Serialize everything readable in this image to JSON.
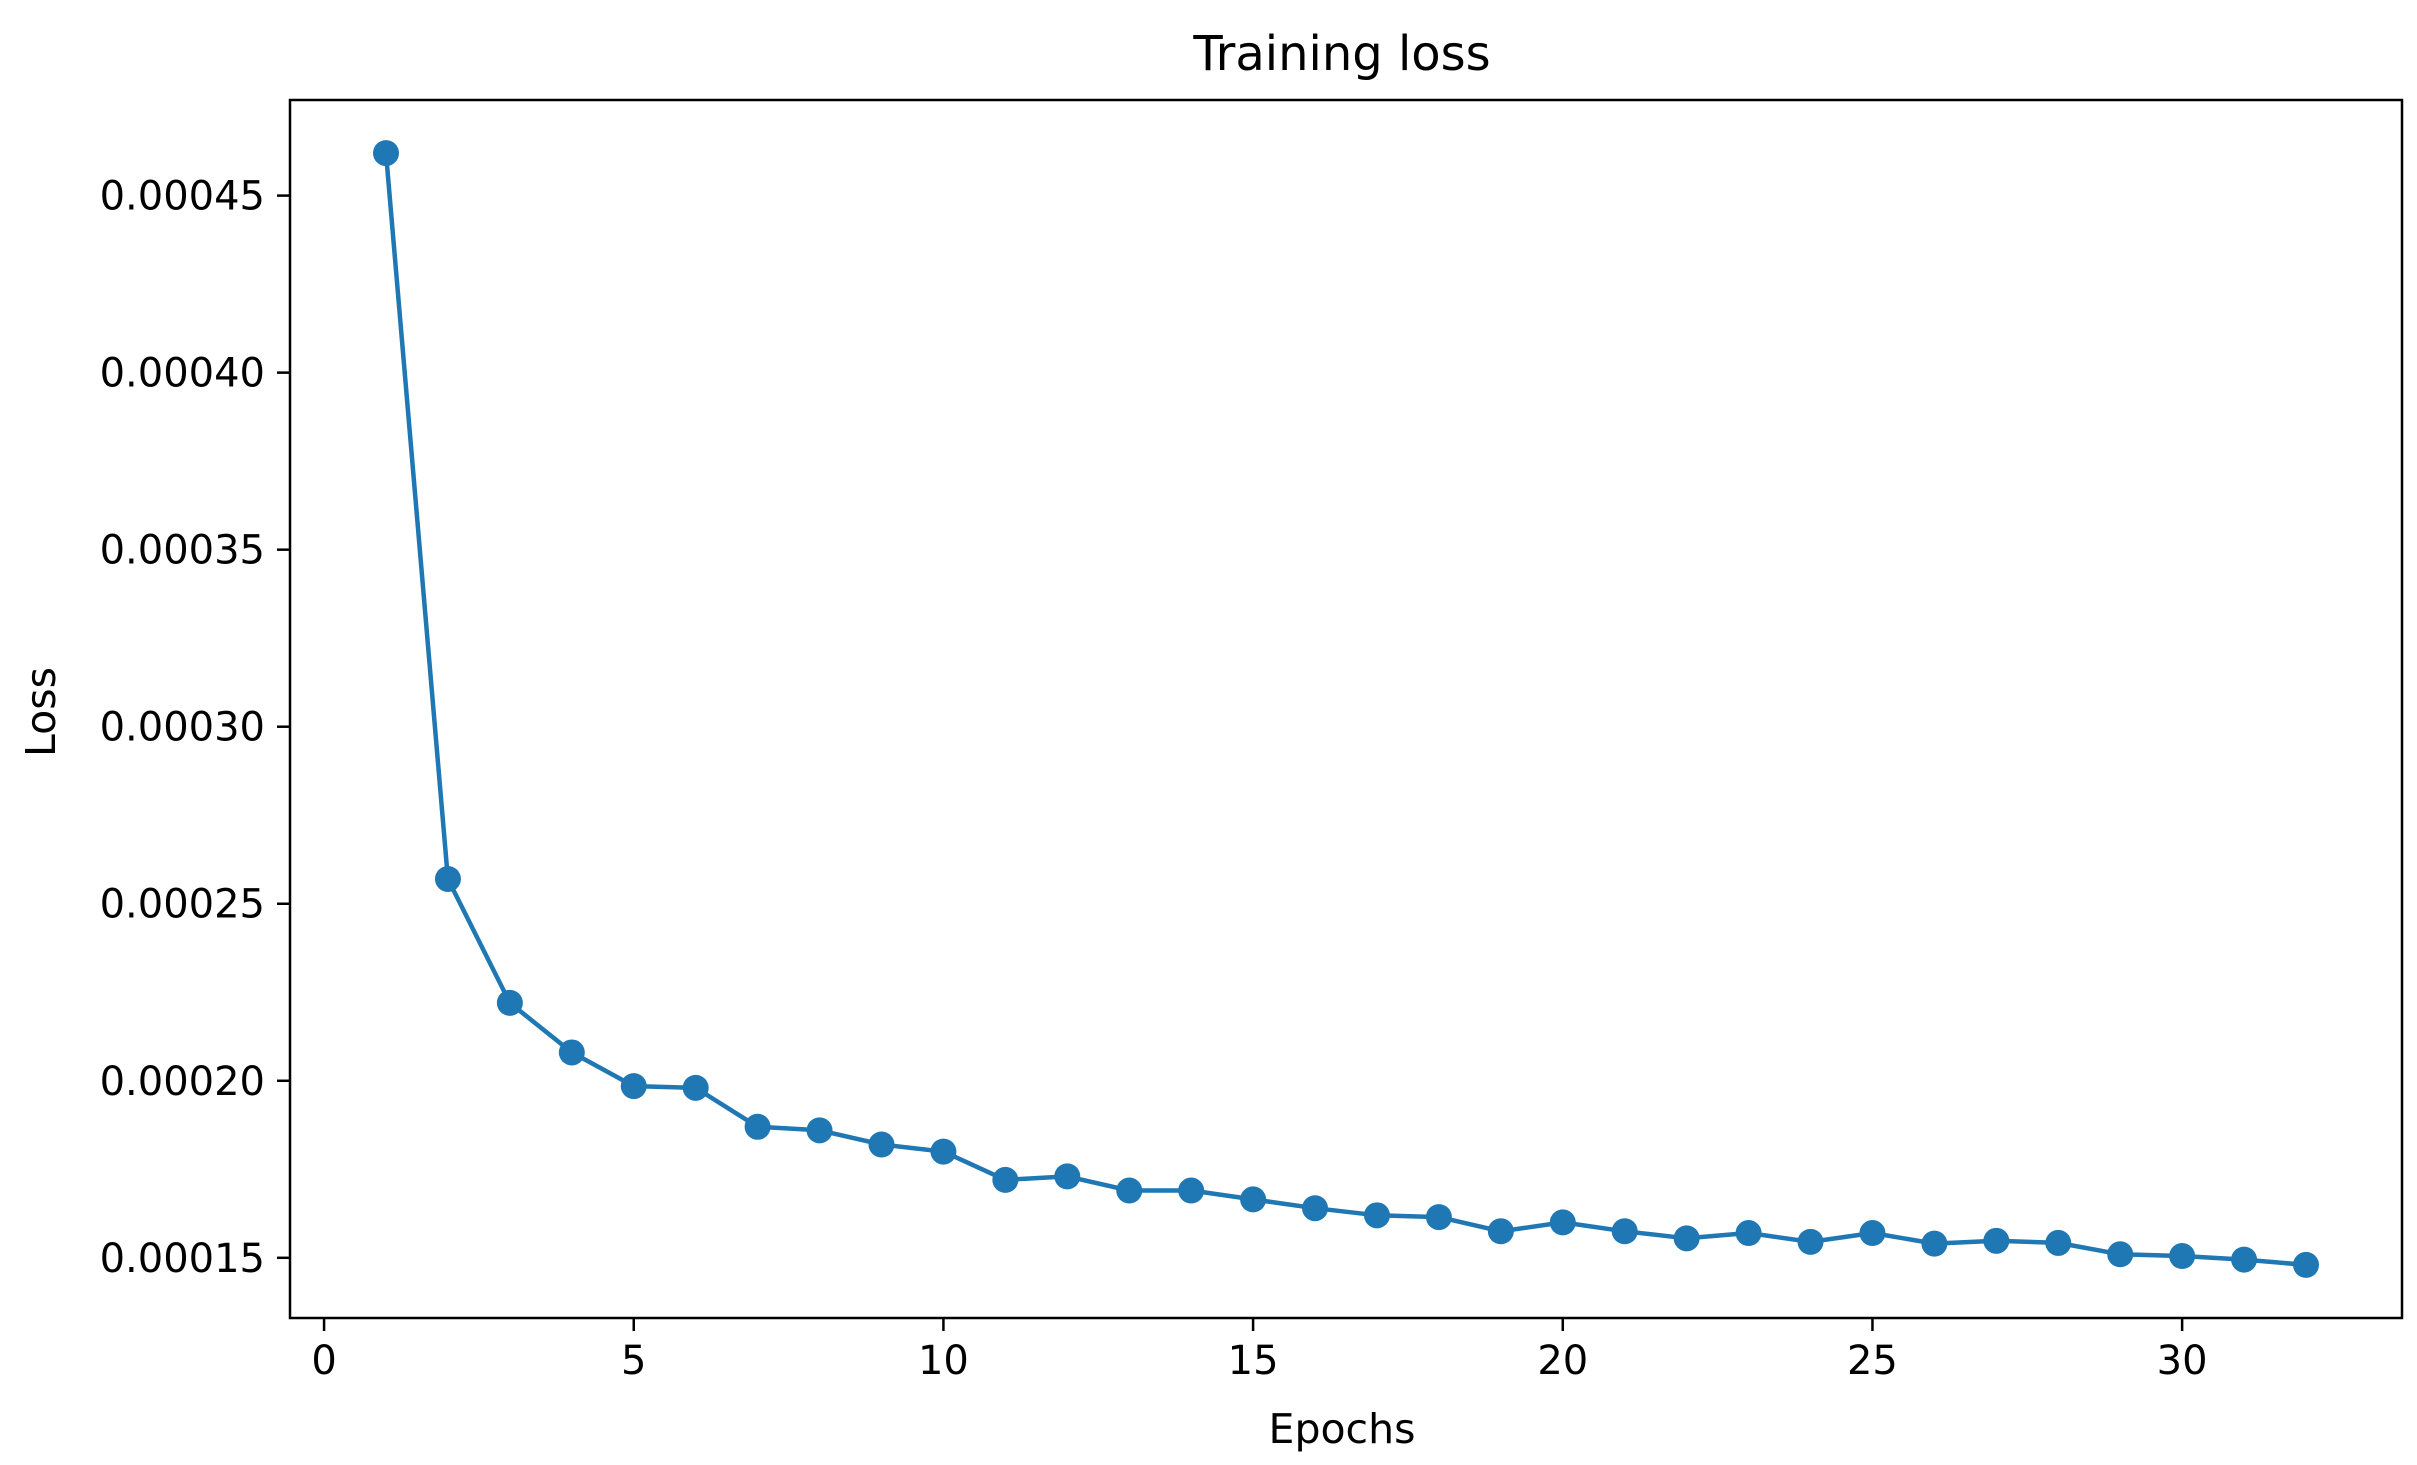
{
  "chart_data": {
    "type": "line",
    "title": "Training loss",
    "xlabel": "Epochs",
    "ylabel": "Loss",
    "xlim": [
      -0.55,
      33.55
    ],
    "ylim": [
      0.000133,
      0.000477
    ],
    "xticks": [
      0,
      5,
      10,
      15,
      20,
      25,
      30
    ],
    "xtick_labels": [
      "0",
      "5",
      "10",
      "15",
      "20",
      "25",
      "30"
    ],
    "yticks": [
      0.00015,
      0.0002,
      0.00025,
      0.0003,
      0.00035,
      0.0004,
      0.00045
    ],
    "ytick_labels": [
      "0.00015",
      "0.00020",
      "0.00025",
      "0.00030",
      "0.00035",
      "0.00040",
      "0.00045"
    ],
    "grid": false,
    "legend": null,
    "series": [
      {
        "name": "Training loss",
        "color": "#1f77b4",
        "marker": "circle",
        "x": [
          1,
          2,
          3,
          4,
          5,
          6,
          7,
          8,
          9,
          10,
          11,
          12,
          13,
          14,
          15,
          16,
          17,
          18,
          19,
          20,
          21,
          22,
          23,
          24,
          25,
          26,
          27,
          28,
          29,
          30,
          31,
          32
        ],
        "y": [
          0.000462,
          0.000257,
          0.000222,
          0.000208,
          0.0001985,
          0.000198,
          0.000187,
          0.000186,
          0.000182,
          0.00018,
          0.000172,
          0.000173,
          0.000169,
          0.000169,
          0.0001665,
          0.000164,
          0.000162,
          0.0001615,
          0.0001575,
          0.00016,
          0.0001575,
          0.0001555,
          0.000157,
          0.0001545,
          0.000157,
          0.000154,
          0.0001548,
          0.0001542,
          0.000151,
          0.0001505,
          0.0001495,
          0.000148
        ]
      }
    ]
  },
  "colors": {
    "line": "#1f77b4",
    "axes": "#000000",
    "background": "#ffffff"
  }
}
